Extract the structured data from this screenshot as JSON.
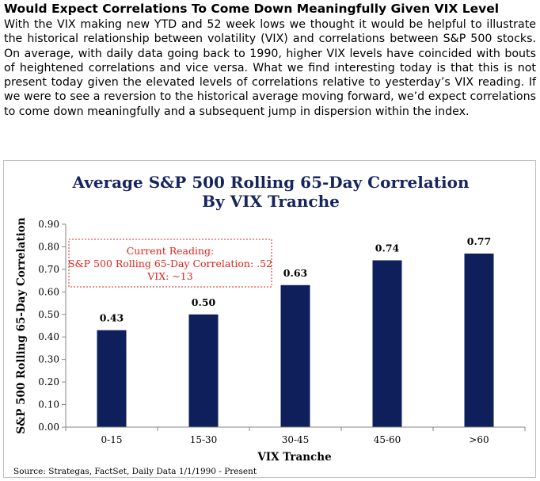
{
  "headline": "Would Expect Correlations To Come Down Meaningfully Given VIX Level",
  "intro": "With the VIX making new YTD and 52 week lows we thought it would be helpful to illustrate the historical relationship between volatility (VIX) and correlations between S&P 500 stocks. On average, with daily data going back to 1990, higher VIX levels have coincided with bouts of heightened correlations and vice versa. What we find interesting today is that this is not present today given the elevated levels of correlations relative to yesterday’s VIX reading. If we were to see a reversion to the historical average moving forward, we’d expect correlations to come down meaningfully and a subsequent jump in dispersion within the index.",
  "colors": {
    "bar": "#0e1f5b",
    "title": "#17245e",
    "annotation": "#e0241c"
  },
  "chart_data": {
    "type": "bar",
    "title_line1": "Average S&P 500 Rolling 65-Day Correlation",
    "title_line2": "By VIX Tranche",
    "xlabel": "VIX Tranche",
    "ylabel": "S&P 500 Rolling 65-Day Correlation",
    "categories": [
      "0-15",
      "15-30",
      "30-45",
      "45-60",
      ">60"
    ],
    "values": [
      0.43,
      0.5,
      0.63,
      0.74,
      0.77
    ],
    "value_labels": [
      "0.43",
      "0.50",
      "0.63",
      "0.74",
      "0.77"
    ],
    "ylim": [
      0,
      0.9
    ],
    "yticks": [
      "0.00",
      "0.10",
      "0.20",
      "0.30",
      "0.40",
      "0.50",
      "0.60",
      "0.70",
      "0.80",
      "0.90"
    ],
    "grid": false,
    "legend": "none",
    "annotation": {
      "line1": "Current Reading:",
      "line2": "S&P 500 Rolling 65-Day Correlation: .52",
      "line3": "VIX: ~13"
    },
    "source": "Source: Strategas, FactSet, Daily Data  1/1/1990 - Present"
  }
}
